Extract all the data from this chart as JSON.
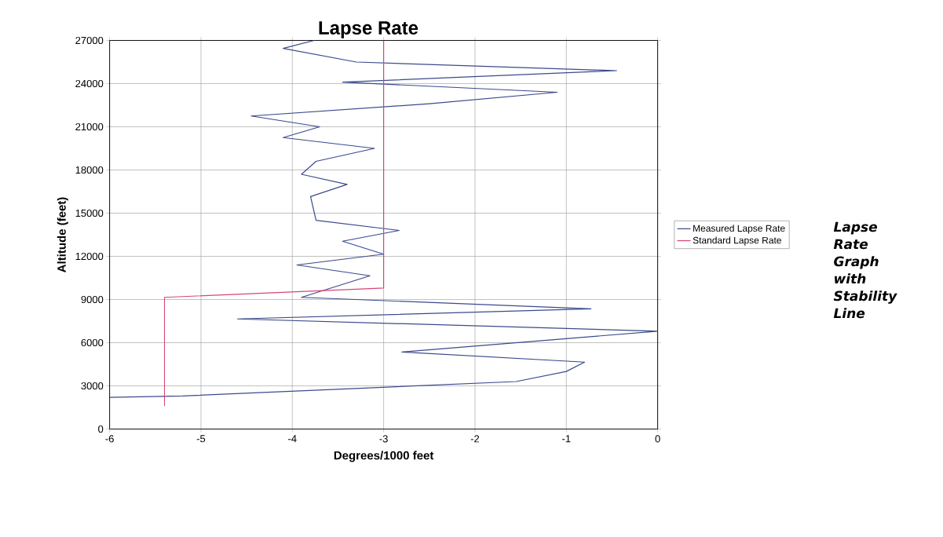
{
  "chart_data": {
    "type": "line",
    "title": "Lapse Rate",
    "xlabel": "Degrees/1000 feet",
    "ylabel": "Altitude (feet)",
    "annotations": [
      "Lapse Rate Graph with Stability Line"
    ],
    "series": [
      {
        "name": "Measured Lapse Rate",
        "color": "#3b4a8c",
        "x": [
          -3.76,
          -4.1,
          -3.3,
          -0.45,
          -3.45,
          -1.1,
          -2.5,
          -4.45,
          -3.7,
          -4.1,
          -3.1,
          -3.74,
          -3.9,
          -3.4,
          -3.8,
          -3.74,
          -2.83,
          -3.45,
          -3.0,
          -3.95,
          -3.15,
          -3.9,
          -0.73,
          -4.6,
          0,
          -2.8,
          -0.8,
          -1.0,
          -1.55,
          -5.2,
          -6
        ],
        "values": [
          27000,
          26450,
          25500,
          24900,
          24100,
          23400,
          22600,
          21750,
          21000,
          20250,
          19500,
          18600,
          17700,
          17000,
          16150,
          14500,
          13800,
          13050,
          12150,
          11400,
          10650,
          9150,
          8350,
          7650,
          6800,
          5350,
          4650,
          4000,
          3300,
          2300,
          2200
        ]
      },
      {
        "name": "Standard Lapse Rate",
        "color": "#d4457a",
        "x": [
          -3,
          -3,
          -5.4,
          -5.4
        ],
        "values": [
          27000,
          9800,
          9150,
          1600
        ]
      }
    ],
    "xlim": [
      -6,
      0
    ],
    "xticks": [
      -6,
      -5,
      -4,
      -3,
      -2,
      -1,
      0
    ],
    "ylim": [
      0,
      27000
    ],
    "yticks": [
      0,
      3000,
      6000,
      9000,
      12000,
      15000,
      18000,
      21000,
      24000,
      27000
    ],
    "grid": true,
    "legend": "right",
    "marker": "none",
    "line_style": "solid"
  }
}
